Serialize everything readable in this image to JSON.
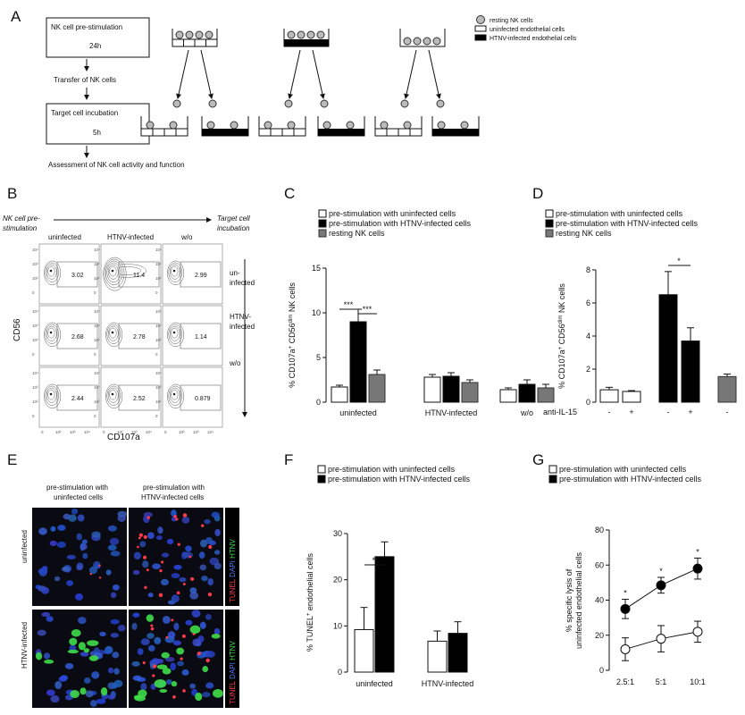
{
  "panel_a": {
    "label": "A",
    "step1_title": "NK cell pre-stimulation",
    "step1_time": "24h",
    "step2": "Transfer of NK cells",
    "step3_title": "Target cell incubation",
    "step3_time": "5h",
    "step4": "Assessment of NK cell activity and function",
    "legend": [
      "resting NK cells",
      "uninfected endothelial cells",
      "HTNV-infected endothelial cells"
    ]
  },
  "panel_b": {
    "label": "B",
    "header_left": [
      "NK cell pre-",
      "stimulation"
    ],
    "header_right": [
      "Target cell",
      "incubation"
    ],
    "columns": [
      "uninfected",
      "HTNV-infected",
      "w/o"
    ],
    "rows": [
      [
        "un-",
        "infected"
      ],
      [
        "HTNV-",
        "infected"
      ],
      [
        "w/o"
      ]
    ],
    "values": [
      [
        "3.02",
        "11.4",
        "2.99"
      ],
      [
        "2.68",
        "2.78",
        "1.14"
      ],
      [
        "2.44",
        "2.52",
        "0.879"
      ]
    ],
    "ylabel": "CD56",
    "xlabel": "CD107a"
  },
  "panel_e": {
    "label": "E",
    "col_titles": [
      [
        "pre-stimulation with",
        "uninfected cells"
      ],
      [
        "pre-stimulation with",
        "HTNV-infected cells"
      ]
    ],
    "row_labels": [
      "uninfected",
      "HTNV-infected"
    ],
    "stain_tunel": "TUNEL",
    "stain_dapi": "DAPI",
    "stain_htnv": "HTNV"
  },
  "chart_data": [
    {
      "panel": "C",
      "type": "bar",
      "legend": [
        "pre-stimulation with uninfected cells",
        "pre-stimulation with HTNV-infected cells",
        "resting NK cells"
      ],
      "categories": [
        "uninfected",
        "HTNV-infected",
        "w/o"
      ],
      "series": [
        {
          "name": "pre-stimulation with uninfected cells",
          "values": [
            1.7,
            2.8,
            1.4
          ],
          "errors": [
            0.2,
            0.3,
            0.2
          ]
        },
        {
          "name": "pre-stimulation with HTNV-infected cells",
          "values": [
            9.0,
            2.9,
            2.0
          ],
          "errors": [
            1.4,
            0.4,
            0.5
          ]
        },
        {
          "name": "resting NK cells",
          "values": [
            3.1,
            2.2,
            1.6
          ],
          "errors": [
            0.5,
            0.3,
            0.4
          ]
        }
      ],
      "ylabel_main": "% CD107a",
      "ylabel_mid": " CD56",
      "ylabel_sup": "dim",
      "ylabel_end": " NK cells",
      "ylim": [
        0,
        15
      ],
      "yticks": [
        "0",
        "5",
        "10",
        "15"
      ],
      "annotations": [
        "***",
        "***"
      ]
    },
    {
      "panel": "D",
      "type": "bar",
      "legend": [
        "pre-stimulation with uninfected cells",
        "pre-stimulation with HTNV-infected cells",
        "resting NK cells"
      ],
      "groups": [
        {
          "series": "pre-stimulation with uninfected cells",
          "anti_il15": [
            "-",
            "+"
          ],
          "values": [
            0.75,
            0.65
          ],
          "errors": [
            0.15,
            0.05
          ]
        },
        {
          "series": "pre-stimulation with HTNV-infected cells",
          "anti_il15": [
            "-",
            "+"
          ],
          "values": [
            6.5,
            3.7
          ],
          "errors": [
            1.4,
            0.8
          ]
        },
        {
          "series": "resting NK cells",
          "anti_il15": [
            "-"
          ],
          "values": [
            1.55
          ],
          "errors": [
            0.15
          ]
        }
      ],
      "xlabel": "anti-IL-15",
      "ylabel_main": "% CD107a",
      "ylabel_mid": " CD56",
      "ylabel_sup": "dim",
      "ylabel_end": " NK cells",
      "ylim": [
        0,
        8
      ],
      "yticks": [
        "0",
        "2",
        "4",
        "6",
        "8"
      ],
      "annotations": [
        "*"
      ]
    },
    {
      "panel": "F",
      "type": "bar",
      "legend": [
        "pre-stimulation with uninfected cells",
        "pre-stimulation with HTNV-infected cells"
      ],
      "categories": [
        "uninfected",
        "HTNV-infected"
      ],
      "series": [
        {
          "name": "pre-stimulation with uninfected cells",
          "values": [
            9.2,
            6.7
          ],
          "errors": [
            4.8,
            2.2
          ]
        },
        {
          "name": "pre-stimulation with HTNV-infected cells",
          "values": [
            25.0,
            8.4
          ],
          "errors": [
            3.2,
            2.5
          ]
        }
      ],
      "ylabel_main": "% TUNEL",
      "ylabel_sup": "+",
      "ylabel_end": " endothelial cells",
      "ylim": [
        0,
        30
      ],
      "yticks": [
        "0",
        "10",
        "20",
        "30"
      ],
      "annotations": [
        "**"
      ]
    },
    {
      "panel": "G",
      "type": "line",
      "legend": [
        "pre-stimulation with uninfected cells",
        "pre-stimulation with HTNV-infected cells"
      ],
      "categories": [
        "2.5:1",
        "5:1",
        "10:1"
      ],
      "series": [
        {
          "name": "pre-stimulation with uninfected cells",
          "values": [
            12,
            18,
            22
          ],
          "errors": [
            6.5,
            7.5,
            6
          ]
        },
        {
          "name": "pre-stimulation with HTNV-infected cells",
          "values": [
            35,
            48.5,
            58
          ],
          "errors": [
            5.5,
            4.5,
            6
          ]
        }
      ],
      "ylabel": [
        "% specific lysis of",
        "uninfected endothelial cells"
      ],
      "ylim": [
        0,
        80
      ],
      "yticks": [
        "0",
        "20",
        "40",
        "60",
        "80"
      ],
      "annotations": [
        "*",
        "*",
        "*"
      ]
    }
  ],
  "panel_labels": {
    "c": "C",
    "d": "D",
    "f": "F",
    "g": "G"
  }
}
